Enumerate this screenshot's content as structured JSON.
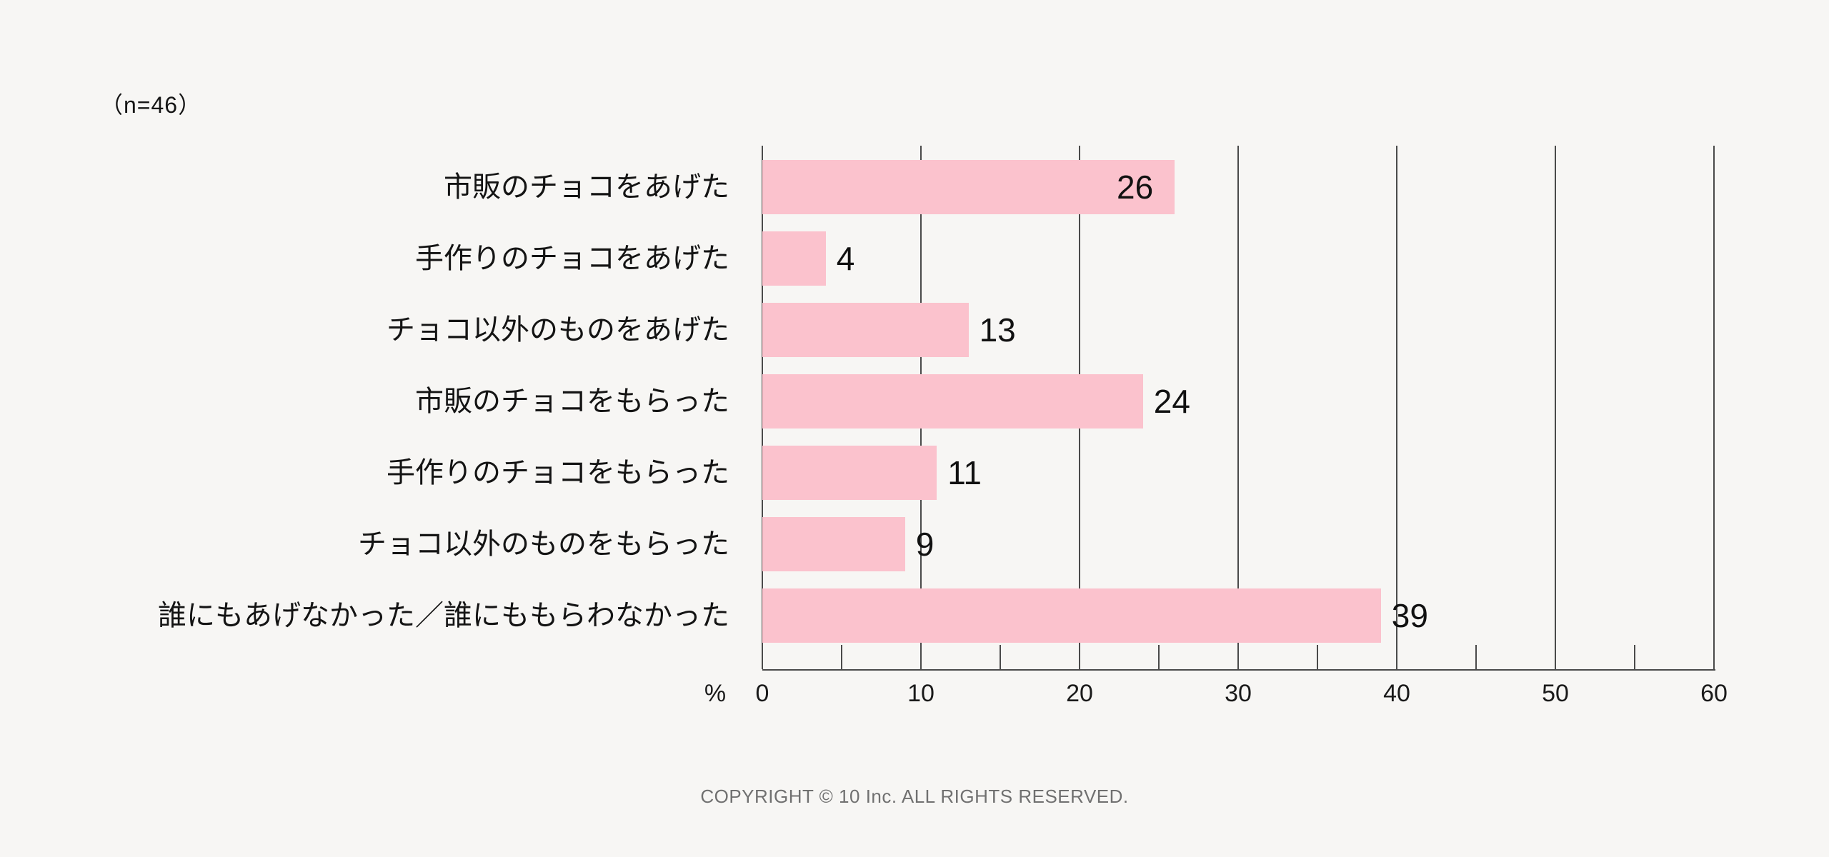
{
  "page": {
    "background_color": "#f7f6f4",
    "n_label": "（n=46）"
  },
  "chart_data": {
    "type": "bar",
    "orientation": "horizontal",
    "title": "",
    "categories": [
      "市販のチョコをあげた",
      "手作りのチョコをあげた",
      "チョコ以外のものをあげた",
      "市販のチョコをもらった",
      "手作りのチョコをもらった",
      "チョコ以外のものをもらった",
      "誰にもあげなかった／誰にももらわなかった"
    ],
    "values": [
      26,
      4,
      13,
      24,
      11,
      9,
      39
    ],
    "value_label_inside": [
      true,
      false,
      false,
      false,
      false,
      false,
      false
    ],
    "xlabel": "%",
    "ylabel": "",
    "xlim": [
      0,
      60
    ],
    "x_major_ticks": [
      0,
      10,
      20,
      30,
      40,
      50,
      60
    ],
    "x_minor_tick_step": 5,
    "grid": "vertical-major",
    "legend": "none",
    "bar_color": "#fbc2cd",
    "grid_color": "#4a4a4a",
    "text_color": "#141414"
  },
  "footer": {
    "copyright": "COPYRIGHT © 10 Inc. ALL RIGHTS RESERVED."
  }
}
